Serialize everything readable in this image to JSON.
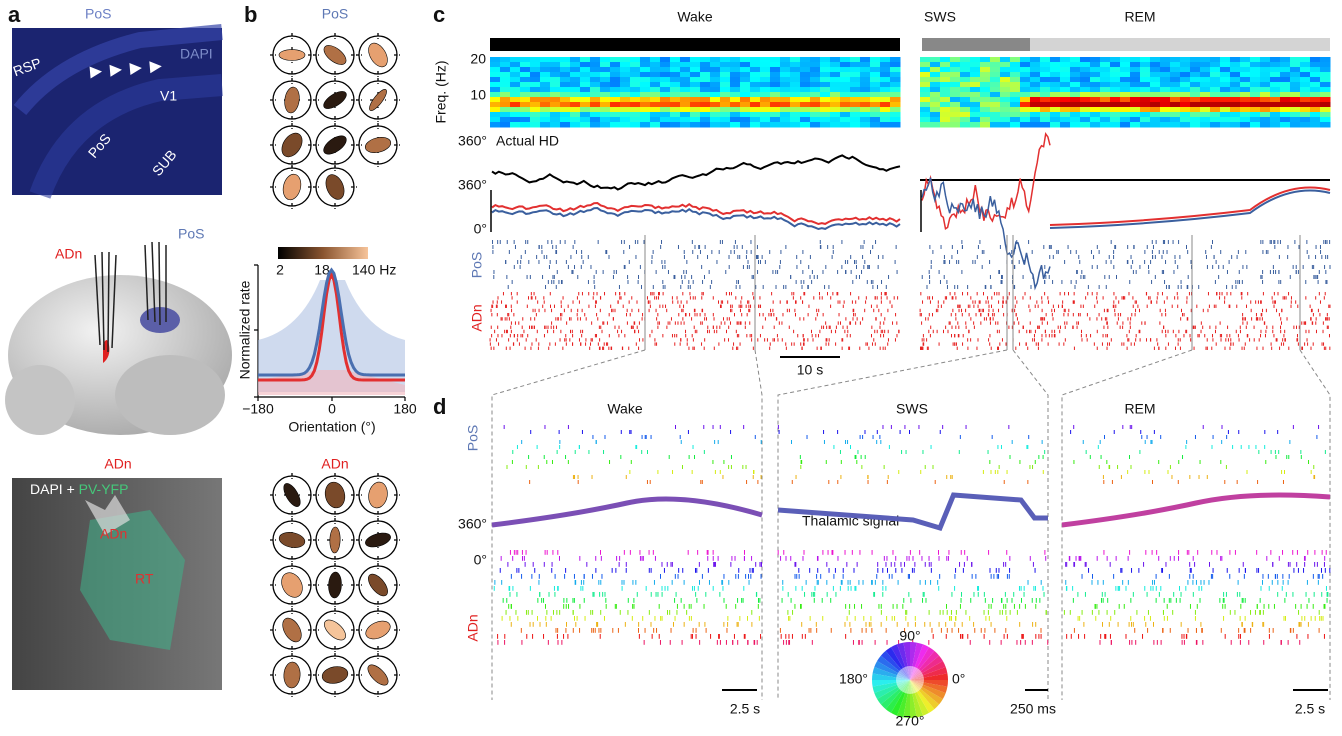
{
  "panel_a": {
    "letter": "a",
    "image_labels": [
      "PoS",
      "DAPI",
      "RSP",
      "V1",
      "PoS",
      "SUB"
    ],
    "brain_labels": [
      "ADn",
      "PoS"
    ],
    "histology_title": "ADn",
    "histology_labels": [
      "DAPI + ",
      "PV-YFP",
      "ADn",
      "RT"
    ]
  },
  "panel_b": {
    "letter": "b",
    "top_label": "PoS",
    "colorbar_ticks": [
      "2",
      "18",
      "140 Hz"
    ],
    "y_label": "Normalized rate",
    "x_ticks": [
      "−180",
      "0",
      "180"
    ],
    "x_label": "Orientation (°)",
    "bottom_label": "ADn"
  },
  "panel_c": {
    "letter": "c",
    "states": [
      "Wake",
      "SWS",
      "REM"
    ],
    "freq_label": "Freq. (Hz)",
    "freq_ticks": [
      "20",
      "10"
    ],
    "hd_tick": "360°",
    "hd_label": "Actual HD",
    "decoded_ticks": [
      "360°",
      "0°"
    ],
    "raster_labels": [
      "PoS",
      "ADn"
    ],
    "scale_bar": "10 s"
  },
  "panel_d": {
    "letter": "d",
    "states": [
      "Wake",
      "SWS",
      "REM"
    ],
    "pos_label": "PoS",
    "signal_ticks": [
      "360°",
      "0°"
    ],
    "signal_label": "Thalamic signal",
    "adn_label": "ADn",
    "scale_bars": [
      "2.5 s",
      "250 ms",
      "2.5 s"
    ],
    "wheel_labels": [
      "90°",
      "0°",
      "180°",
      "270°"
    ]
  }
}
